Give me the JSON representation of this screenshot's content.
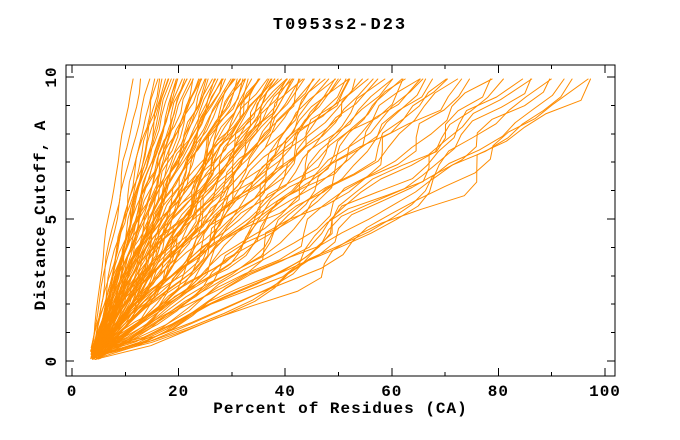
{
  "chart_data": {
    "type": "line",
    "title": "T0953s2-D23",
    "xlabel": "Percent of Residues (CA)",
    "ylabel": "Distance Cutoff, A",
    "xlim": [
      0,
      100
    ],
    "ylim": [
      0,
      10
    ],
    "grid": false,
    "legend": "none",
    "series_color": "#ff8c00",
    "axis_color": "#000000",
    "background_color": "#ffffff",
    "x_ticks": {
      "major": [
        0,
        20,
        40,
        60,
        80,
        100
      ],
      "minor": [
        10,
        30,
        50,
        70,
        90
      ]
    },
    "y_ticks": {
      "major": [
        0,
        5,
        10
      ],
      "minor": [
        1,
        2,
        3,
        4,
        6,
        7,
        8,
        9
      ]
    },
    "curve_y_start_range": [
      0.05,
      0.5
    ],
    "curve_y_end": 9.93,
    "curve_format": "each curve = [percent_at_low_cutoff, percent_at_cutoff_10, shape_exponent]; x(y) = x0+(xend-x0)*t^p, t=(y-y0)/(9.93-y0)",
    "curves": [
      [
        4.0,
        11.5,
        1.35
      ],
      [
        4.4,
        13,
        1.25
      ],
      [
        3.6,
        14.5,
        1.2
      ],
      [
        4.8,
        15.5,
        1.05
      ],
      [
        4.2,
        16,
        1.15
      ],
      [
        5.0,
        16.5,
        0.95
      ],
      [
        3.8,
        17,
        1.1
      ],
      [
        4.5,
        17.5,
        1.0
      ],
      [
        5.2,
        18,
        1.08
      ],
      [
        4.1,
        18,
        1.18
      ],
      [
        3.5,
        18.5,
        1.0
      ],
      [
        4.6,
        19,
        1.12
      ],
      [
        5.1,
        19.5,
        0.92
      ],
      [
        3.9,
        20,
        1.05
      ],
      [
        4.3,
        20.5,
        1.15
      ],
      [
        5.4,
        21,
        0.98
      ],
      [
        4.0,
        21.5,
        1.1
      ],
      [
        4.7,
        22,
        1.02
      ],
      [
        3.7,
        22.5,
        1.12
      ],
      [
        5.0,
        23,
        0.95
      ],
      [
        4.4,
        23.5,
        1.08
      ],
      [
        4.9,
        24,
        1.0
      ],
      [
        3.6,
        24.5,
        1.15
      ],
      [
        5.3,
        25,
        0.9
      ],
      [
        4.2,
        25.5,
        1.05
      ],
      [
        4.6,
        26,
        1.1
      ],
      [
        3.8,
        26.5,
        0.97
      ],
      [
        5.1,
        27,
        1.06
      ],
      [
        4.5,
        27.5,
        1.12
      ],
      [
        4.0,
        28,
        0.94
      ],
      [
        4.8,
        28.5,
        1.03
      ],
      [
        3.5,
        29,
        1.1
      ],
      [
        5.2,
        29.5,
        0.99
      ],
      [
        4.3,
        30,
        1.07
      ],
      [
        4.7,
        19.8,
        1.04
      ],
      [
        3.9,
        21.2,
        0.96
      ],
      [
        5.5,
        23.8,
        1.09
      ],
      [
        4.1,
        26.2,
        1.01
      ],
      [
        4.9,
        28.2,
        1.13
      ],
      [
        3.7,
        29.8,
        0.93
      ],
      [
        4.2,
        30.5,
        1.02
      ],
      [
        4.8,
        31,
        0.95
      ],
      [
        3.6,
        31.5,
        1.08
      ],
      [
        5.0,
        32,
        1.0
      ],
      [
        4.4,
        32.5,
        0.9
      ],
      [
        3.9,
        33,
        1.05
      ],
      [
        5.3,
        33.5,
        0.98
      ],
      [
        4.1,
        34,
        1.1
      ],
      [
        4.6,
        34.5,
        0.92
      ],
      [
        3.8,
        35,
        1.03
      ],
      [
        5.1,
        35.5,
        0.96
      ],
      [
        4.3,
        36,
        1.06
      ],
      [
        4.9,
        36.5,
        0.88
      ],
      [
        3.5,
        37,
        1.01
      ],
      [
        5.4,
        37.5,
        0.94
      ],
      [
        4.0,
        38,
        1.04
      ],
      [
        4.5,
        38.5,
        0.97
      ],
      [
        3.7,
        39,
        1.07
      ],
      [
        5.2,
        39.5,
        0.91
      ],
      [
        4.2,
        40,
        1.0
      ],
      [
        4.7,
        40.5,
        0.95
      ],
      [
        3.9,
        41,
        1.05
      ],
      [
        5.0,
        41.5,
        0.89
      ],
      [
        4.4,
        42,
        0.99
      ],
      [
        4.1,
        31.8,
        0.93
      ],
      [
        4.8,
        34.8,
        1.02
      ],
      [
        3.6,
        37.8,
        0.96
      ],
      [
        5.3,
        40.8,
        1.01
      ],
      [
        4.3,
        42.5,
        0.94
      ],
      [
        4.9,
        43.5,
        0.88
      ],
      [
        3.7,
        44,
        1.0
      ],
      [
        5.1,
        45,
        0.92
      ],
      [
        4.0,
        45.5,
        0.97
      ],
      [
        4.6,
        46.5,
        0.85
      ],
      [
        3.8,
        47,
        0.95
      ],
      [
        5.2,
        48,
        0.9
      ],
      [
        4.2,
        48.5,
        0.99
      ],
      [
        4.7,
        49.5,
        0.87
      ],
      [
        3.9,
        50,
        0.93
      ],
      [
        5.0,
        51,
        0.96
      ],
      [
        4.4,
        51.5,
        0.84
      ],
      [
        4.1,
        52.5,
        0.91
      ],
      [
        4.8,
        53,
        0.88
      ],
      [
        3.6,
        54,
        0.95
      ],
      [
        5.3,
        54.5,
        0.86
      ],
      [
        4.5,
        55,
        0.92
      ],
      [
        4.0,
        43,
        0.89
      ],
      [
        4.6,
        50.5,
        0.9
      ],
      [
        4.2,
        56,
        0.86
      ],
      [
        4.8,
        57.5,
        0.9
      ],
      [
        3.8,
        59,
        0.83
      ],
      [
        5.1,
        60,
        0.88
      ],
      [
        4.4,
        61.5,
        0.82
      ],
      [
        4.0,
        63,
        0.87
      ],
      [
        4.7,
        64,
        0.8
      ],
      [
        3.9,
        65.5,
        0.85
      ],
      [
        5.2,
        67,
        0.83
      ],
      [
        4.3,
        68,
        0.78
      ],
      [
        4.9,
        69.5,
        0.84
      ],
      [
        4.1,
        58,
        0.8
      ],
      [
        4.6,
        62,
        0.84
      ],
      [
        3.7,
        66,
        0.81
      ],
      [
        4.4,
        70.5,
        0.8
      ],
      [
        4.0,
        72,
        0.77
      ],
      [
        4.8,
        74,
        0.82
      ],
      [
        3.8,
        76,
        0.75
      ],
      [
        5.0,
        78,
        0.79
      ],
      [
        4.2,
        80,
        0.74
      ],
      [
        4.6,
        82,
        0.78
      ],
      [
        3.9,
        83.5,
        0.73
      ],
      [
        4.5,
        85,
        0.76
      ],
      [
        4.1,
        87,
        0.74
      ],
      [
        4.7,
        89,
        0.71
      ],
      [
        3.8,
        91,
        0.75
      ],
      [
        4.3,
        93,
        0.7
      ],
      [
        4.9,
        95,
        0.72
      ],
      [
        4.0,
        96.5,
        0.69
      ],
      [
        4.4,
        98,
        0.71
      ]
    ]
  }
}
